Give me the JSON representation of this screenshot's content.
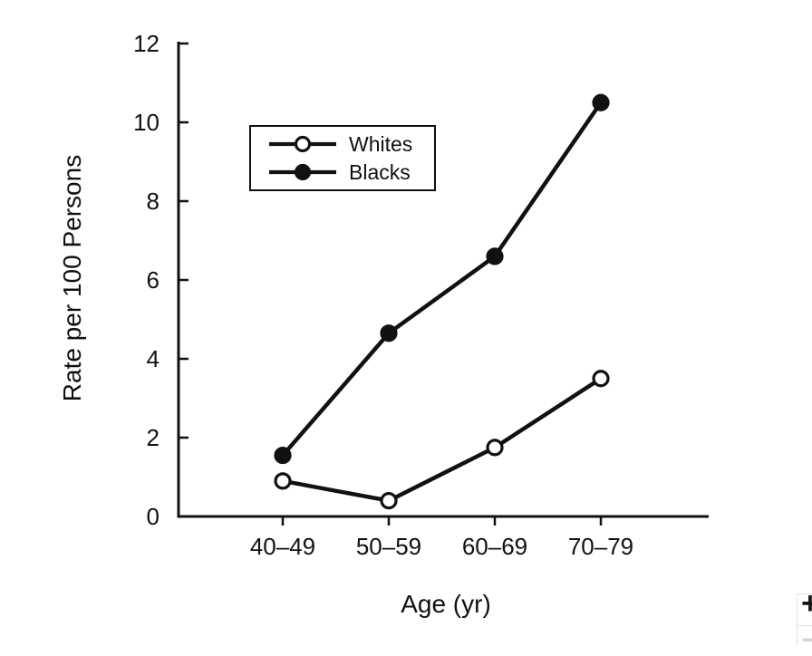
{
  "figure": {
    "background_color": "#ffffff",
    "ink_color": "#111111"
  },
  "chart_data": {
    "type": "line",
    "title": "",
    "categories": [
      "40–49",
      "50–59",
      "60–69",
      "70–79"
    ],
    "series": [
      {
        "name": "Whites",
        "marker": "open-circle",
        "values": [
          0.9,
          0.4,
          1.75,
          3.5
        ]
      },
      {
        "name": "Blacks",
        "marker": "filled-circle",
        "values": [
          1.55,
          4.65,
          6.6,
          10.5
        ]
      }
    ],
    "xlabel": "Age (yr)",
    "ylabel": "Rate per 100 Persons",
    "ylim": [
      0,
      12
    ],
    "yticks": [
      0,
      2,
      4,
      6,
      8,
      10,
      12
    ],
    "grid": false,
    "legend_position": "upper-left-inside"
  },
  "legend": {
    "items": [
      {
        "label": "Whites",
        "marker": "open-circle"
      },
      {
        "label": "Blacks",
        "marker": "filled-circle"
      }
    ]
  },
  "corner_widget": {
    "zoom_in_label": "+",
    "zoom_out_label": "−"
  }
}
